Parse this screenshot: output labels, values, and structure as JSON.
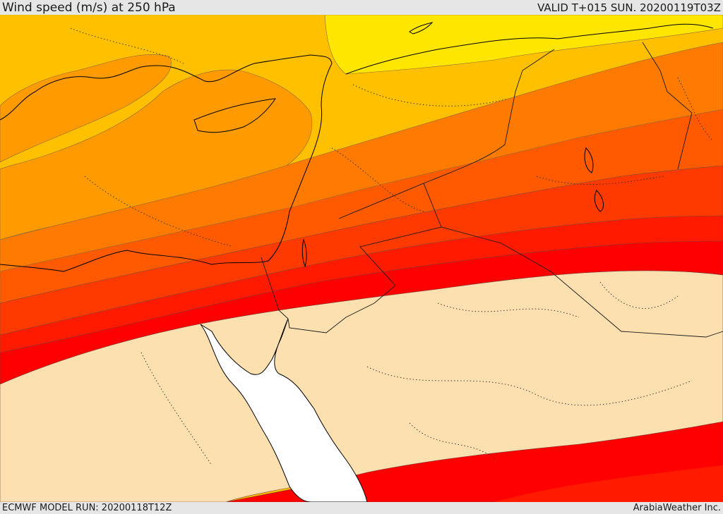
{
  "header": {
    "title": "Wind speed (m/s) at 250 hPa",
    "valid_time": "VALID T+015 SUN. 20200119T03Z"
  },
  "footer": {
    "model_run": "ECMWF MODEL RUN: 20200118T12Z",
    "credit": "ArabiaWeather Inc."
  },
  "colors": {
    "band_yellow": "#ffe600",
    "band_light_orange": "#ffc000",
    "band_orange": "#ff9a00",
    "band_orange_mid": "#ff7a00",
    "band_orange_dark": "#ff5a00",
    "band_red_orange": "#ff3a00",
    "band_red": "#ff1a00",
    "band_core_red": "#ff0000",
    "calm_land": "#fde0b0",
    "sea": "#ffffff"
  }
}
